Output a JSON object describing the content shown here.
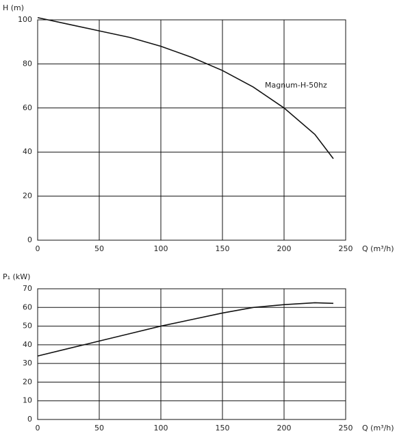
{
  "chart_data": [
    {
      "type": "line",
      "y_label": "H (m)",
      "x_label": "Q (m³/h)",
      "x": [
        0,
        25,
        50,
        75,
        100,
        125,
        150,
        175,
        200,
        225,
        240
      ],
      "series": [
        {
          "name": "Magnum-H-50hz",
          "color": "#111111",
          "values": [
            101,
            98,
            95,
            92,
            88,
            83,
            77,
            69.5,
            60,
            48,
            37
          ]
        }
      ],
      "xlim": [
        0,
        250
      ],
      "xticks": [
        0,
        50,
        100,
        150,
        200,
        250
      ],
      "ylim": [
        0,
        100
      ],
      "yticks": [
        0,
        20,
        40,
        60,
        80,
        100
      ],
      "grid": true
    },
    {
      "type": "line",
      "y_label": "P₁ (kW)",
      "x_label": "Q (m³/h)",
      "x": [
        0,
        25,
        50,
        75,
        100,
        125,
        150,
        175,
        200,
        225,
        240
      ],
      "series": [
        {
          "color": "#111111",
          "values": [
            34,
            38,
            42,
            46,
            50,
            53.5,
            57,
            60,
            61.5,
            62.5,
            62.2
          ]
        }
      ],
      "xlim": [
        0,
        250
      ],
      "xticks": [
        0,
        50,
        100,
        150,
        200,
        250
      ],
      "ylim": [
        0,
        70
      ],
      "yticks": [
        0,
        10,
        20,
        30,
        40,
        50,
        60,
        70
      ],
      "grid": true
    }
  ]
}
